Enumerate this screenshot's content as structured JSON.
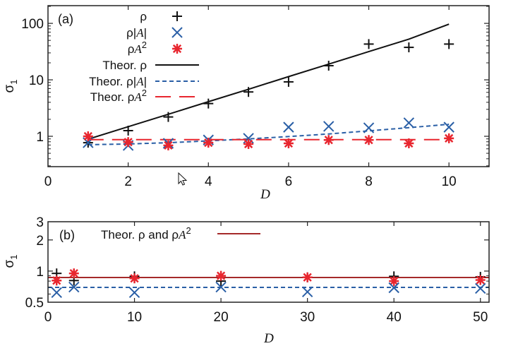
{
  "colors": {
    "rho": "#111111",
    "rho_abs_A": "#2a5fa6",
    "rho_A2": "#e8262f",
    "theor_b": "#a52a2a",
    "frame": "#222222"
  },
  "chart_data": [
    {
      "type": "scatter",
      "panel_label": "(a)",
      "xlabel": "D",
      "ylabel": "σ1",
      "ylabel_main": "σ",
      "ylabel_sub": "1",
      "xscale": "linear",
      "yscale": "log",
      "xlim": [
        0,
        11
      ],
      "ylim": [
        0.29,
        206
      ],
      "xticks": [
        0,
        2,
        4,
        6,
        8,
        10
      ],
      "xtick_labels": [
        "0",
        "2",
        "4",
        "6",
        "8",
        "10"
      ],
      "yticks": [
        1,
        10,
        100
      ],
      "ytick_labels": [
        "1",
        "10",
        "100"
      ],
      "legend_position": "top-left",
      "series": [
        {
          "name": "ρ",
          "legend_text": "ρ",
          "kind": "marker",
          "marker": "plus",
          "color_key": "rho",
          "x": [
            1,
            2,
            3,
            4,
            5,
            6,
            7,
            8,
            9,
            10
          ],
          "y": [
            0.77,
            1.26,
            2.2,
            3.8,
            6.1,
            9.2,
            17.8,
            43,
            37.6,
            43
          ]
        },
        {
          "name": "ρ|A|",
          "legend_text": "ρ|A|",
          "kind": "marker",
          "marker": "cross",
          "color_key": "rho_abs_A",
          "x": [
            1,
            2,
            3,
            4,
            5,
            6,
            7,
            8,
            9,
            10
          ],
          "y": [
            0.77,
            0.69,
            0.75,
            0.86,
            0.92,
            1.45,
            1.5,
            1.41,
            1.73,
            1.45
          ]
        },
        {
          "name": "ρA2",
          "legend_text": "ρA2",
          "kind": "marker",
          "marker": "star",
          "color_key": "rho_A2",
          "x": [
            1,
            2,
            3,
            4,
            5,
            6,
            7,
            8,
            9,
            10
          ],
          "y": [
            1.0,
            0.79,
            0.69,
            0.77,
            0.73,
            0.75,
            0.86,
            0.86,
            0.75,
            0.92
          ]
        },
        {
          "name": "Theor. ρ",
          "legend_text": "Theor. ρ",
          "kind": "line",
          "dash": "solid",
          "color_key": "rho",
          "x": [
            1,
            2,
            3,
            4,
            5,
            6,
            7,
            8,
            9,
            10
          ],
          "y": [
            0.89,
            1.48,
            2.46,
            4.1,
            6.8,
            11.4,
            19.0,
            31.6,
            52.6,
            97
          ]
        },
        {
          "name": "Theor. ρ|A|",
          "legend_text": "Theor. ρ|A|",
          "kind": "line",
          "dash": "short",
          "color_key": "rho_abs_A",
          "x": [
            1,
            2,
            3,
            4,
            5,
            6,
            7,
            8,
            9,
            10
          ],
          "y": [
            0.71,
            0.73,
            0.77,
            0.83,
            0.9,
            0.99,
            1.1,
            1.25,
            1.42,
            1.63
          ]
        },
        {
          "name": "Theor. ρA2",
          "legend_text": "Theor. ρA2",
          "kind": "line",
          "dash": "long",
          "color_key": "rho_A2",
          "x": [
            1,
            10
          ],
          "y": [
            0.87,
            0.87
          ]
        }
      ]
    },
    {
      "type": "scatter",
      "panel_label": "(b)",
      "xlabel": "D",
      "ylabel": "σ1",
      "ylabel_main": "σ",
      "ylabel_sub": "1",
      "xscale": "linear",
      "yscale": "log",
      "xlim": [
        0,
        51
      ],
      "ylim": [
        0.5,
        3
      ],
      "xticks": [
        0,
        10,
        20,
        30,
        40,
        50
      ],
      "xtick_labels": [
        "0",
        "10",
        "20",
        "30",
        "40",
        "50"
      ],
      "yticks": [
        0.5,
        1,
        2,
        3
      ],
      "ytick_labels": [
        "0.5",
        "1",
        "2",
        "3"
      ],
      "legend_position": "top-left",
      "legend_text": "Theor. ρ and ρA2",
      "series": [
        {
          "name": "ρ",
          "kind": "marker",
          "marker": "plus",
          "color_key": "rho",
          "x": [
            1,
            3,
            10,
            20,
            30,
            40,
            50
          ],
          "y": [
            0.95,
            0.81,
            0.89,
            0.8,
            0.87,
            0.89,
            0.88
          ]
        },
        {
          "name": "ρA2",
          "kind": "marker",
          "marker": "star",
          "color_key": "rho_A2",
          "x": [
            1,
            3,
            10,
            20,
            30,
            40,
            50
          ],
          "y": [
            0.81,
            0.95,
            0.85,
            0.9,
            0.87,
            0.8,
            0.82
          ]
        },
        {
          "name": "ρ|A|",
          "kind": "marker",
          "marker": "cross",
          "color_key": "rho_abs_A",
          "x": [
            1,
            3,
            10,
            20,
            30,
            40,
            50
          ],
          "y": [
            0.62,
            0.7,
            0.62,
            0.7,
            0.63,
            0.69,
            0.68
          ]
        },
        {
          "name": "Theor. ρ and ρA2",
          "kind": "line",
          "dash": "solid",
          "color_key": "theor_b",
          "x": [
            0,
            51
          ],
          "y": [
            0.867,
            0.867
          ]
        },
        {
          "name": "Theor. ρ|A|",
          "kind": "line",
          "dash": "short",
          "color_key": "rho_abs_A",
          "x": [
            0,
            51
          ],
          "y": [
            0.695,
            0.695
          ]
        }
      ]
    }
  ]
}
